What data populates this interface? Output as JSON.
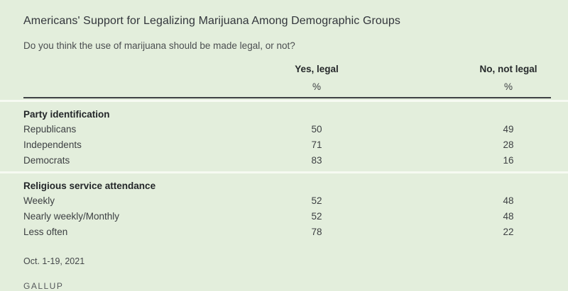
{
  "colors": {
    "background": "#e3eedc",
    "title_text": "#32353b",
    "body_text": "#3c3f42",
    "dark_rule": "#3f4245",
    "light_rule": "#f6faf2",
    "source_text": "#55585b"
  },
  "chart_data": {
    "type": "table",
    "title": "Americans' Support for Legalizing Marijuana Among Demographic Groups",
    "question": "Do you think the use of marijuana should be made legal, or not?",
    "columns": [
      "Yes, legal",
      "No, not legal"
    ],
    "unit": "%",
    "sections": [
      {
        "label": "Party identification",
        "rows": [
          {
            "label": "Republicans",
            "yes": 50,
            "no": 49
          },
          {
            "label": "Independents",
            "yes": 71,
            "no": 28
          },
          {
            "label": "Democrats",
            "yes": 83,
            "no": 16
          }
        ]
      },
      {
        "label": "Religious service attendance",
        "rows": [
          {
            "label": "Weekly",
            "yes": 52,
            "no": 48
          },
          {
            "label": "Nearly weekly/Monthly",
            "yes": 52,
            "no": 48
          },
          {
            "label": "Less often",
            "yes": 78,
            "no": 22
          }
        ]
      }
    ],
    "date": "Oct. 1-19, 2021",
    "source": "GALLUP"
  }
}
